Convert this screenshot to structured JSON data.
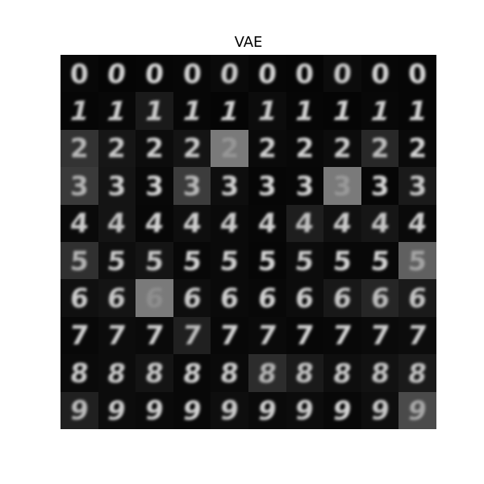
{
  "title": "VAE",
  "grid": {
    "rows": [
      {
        "digit": "0",
        "backgrounds": [
          "#080808",
          "#050505",
          "#060606",
          "#070707",
          "#0a0a0a",
          "#060606",
          "#050505",
          "#0c0c0c",
          "#070707",
          "#060606"
        ],
        "tones": [
          "#cfcfcf",
          "#d4d4d4",
          "#d8d8d8",
          "#d2d2d2",
          "#cccccc",
          "#d5d5d5",
          "#d0d0d0",
          "#cacaca",
          "#d3d3d3",
          "#d6d6d6"
        ],
        "slants": [
          0,
          -6,
          -4,
          -2,
          -5,
          -3,
          -1,
          -4,
          -2,
          2
        ]
      },
      {
        "digit": "1",
        "backgrounds": [
          "#060606",
          "#080808",
          "#1a1a1a",
          "#070707",
          "#050505",
          "#0c0c0c",
          "#060606",
          "#050505",
          "#080808",
          "#060606"
        ],
        "tones": [
          "#c8c8c8",
          "#cfcfcf",
          "#cccccc",
          "#d0d0d0",
          "#d4d4d4",
          "#cdcdcd",
          "#d2d2d2",
          "#d6d6d6",
          "#cfcfcf",
          "#d3d3d3"
        ],
        "slants": [
          -12,
          -14,
          -10,
          -12,
          -14,
          -12,
          -10,
          -12,
          -14,
          -10
        ]
      },
      {
        "digit": "2",
        "backgrounds": [
          "#333333",
          "#161616",
          "#0c0c0c",
          "#141414",
          "#7a7a7a",
          "#0a0a0a",
          "#080808",
          "#0c0c0c",
          "#282828",
          "#0a0a0a"
        ],
        "tones": [
          "#b8b8b8",
          "#c8c8c8",
          "#d0d0d0",
          "#cacaca",
          "#969696",
          "#cfcfcf",
          "#d2d2d2",
          "#cdcdcd",
          "#bdbdbd",
          "#d4d4d4"
        ],
        "slants": [
          0,
          -2,
          0,
          -2,
          0,
          -1,
          0,
          -2,
          0,
          0
        ]
      },
      {
        "digit": "3",
        "backgrounds": [
          "#3a3a3a",
          "#141414",
          "#080808",
          "#3c3c3c",
          "#0e0e0e",
          "#060606",
          "#070707",
          "#7a7a7a",
          "#060606",
          "#1a1a1a"
        ],
        "tones": [
          "#b4b4b4",
          "#cdcdcd",
          "#d6d6d6",
          "#b8b8b8",
          "#d0d0d0",
          "#d5d5d5",
          "#d3d3d3",
          "#999999",
          "#d6d6d6",
          "#c8c8c8"
        ],
        "slants": [
          0,
          0,
          0,
          0,
          0,
          0,
          0,
          0,
          0,
          0
        ]
      },
      {
        "digit": "4",
        "backgrounds": [
          "#0a0a0a",
          "#141414",
          "#070707",
          "#0e0e0e",
          "#0a0a0a",
          "#070707",
          "#1e1e1e",
          "#101010",
          "#161616",
          "#0a0a0a"
        ],
        "tones": [
          "#cdcdcd",
          "#c4c4c4",
          "#d2d2d2",
          "#cfcfcf",
          "#cccccc",
          "#d2d2d2",
          "#c0c0c0",
          "#cbcbcb",
          "#c6c6c6",
          "#d0d0d0"
        ],
        "slants": [
          -4,
          -4,
          -6,
          -4,
          -6,
          -4,
          -4,
          -6,
          -4,
          -6
        ]
      },
      {
        "digit": "5",
        "backgrounds": [
          "#303030",
          "#0e0e0e",
          "#141414",
          "#080808",
          "#0a0a0a",
          "#060606",
          "#0c0c0c",
          "#080808",
          "#080808",
          "#606060"
        ],
        "tones": [
          "#b4b4b4",
          "#cbcbcb",
          "#c8c8c8",
          "#d3d3d3",
          "#d0d0d0",
          "#d5d5d5",
          "#cccccc",
          "#d2d2d2",
          "#d3d3d3",
          "#a4a4a4"
        ],
        "slants": [
          -4,
          -6,
          -4,
          -6,
          -6,
          -4,
          -6,
          -4,
          -6,
          -4
        ]
      },
      {
        "digit": "6",
        "backgrounds": [
          "#101010",
          "#141414",
          "#7a7a7a",
          "#0e0e0e",
          "#0a0a0a",
          "#080808",
          "#0c0c0c",
          "#181818",
          "#262626",
          "#1a1a1a"
        ],
        "tones": [
          "#cdcdcd",
          "#c8c8c8",
          "#8e8e8e",
          "#cbcbcb",
          "#cfcfcf",
          "#d2d2d2",
          "#cdcdcd",
          "#c6c6c6",
          "#bdbdbd",
          "#c4c4c4"
        ],
        "slants": [
          -4,
          -6,
          -4,
          -6,
          -4,
          -6,
          -4,
          -6,
          -4,
          -6
        ]
      },
      {
        "digit": "7",
        "backgrounds": [
          "#080808",
          "#0c0c0c",
          "#0a0a0a",
          "#202020",
          "#080808",
          "#0a0a0a",
          "#070707",
          "#080808",
          "#0a0a0a",
          "#0c0c0c"
        ],
        "tones": [
          "#d0d0d0",
          "#cdcdcd",
          "#d2d2d2",
          "#bdbdbd",
          "#d3d3d3",
          "#cfcfcf",
          "#d4d4d4",
          "#d2d2d2",
          "#cecece",
          "#cccccc"
        ],
        "slants": [
          -4,
          -6,
          -4,
          -6,
          -4,
          -6,
          -4,
          -6,
          -4,
          -6
        ]
      },
      {
        "digit": "8",
        "backgrounds": [
          "#0a0a0a",
          "#0c0c0c",
          "#141414",
          "#080808",
          "#0a0a0a",
          "#2c2c2c",
          "#1a1a1a",
          "#0e0e0e",
          "#121212",
          "#1a1a1a"
        ],
        "tones": [
          "#cbcbcb",
          "#c8c8c8",
          "#c6c6c6",
          "#d0d0d0",
          "#cdcdcd",
          "#b4b4b4",
          "#c0c0c0",
          "#c8c8c8",
          "#c4c4c4",
          "#c2c2c2"
        ],
        "slants": [
          -6,
          -8,
          -6,
          -8,
          -6,
          -8,
          -6,
          -8,
          -6,
          -8
        ]
      },
      {
        "digit": "9",
        "backgrounds": [
          "#202020",
          "#0c0c0c",
          "#0a0a0a",
          "#080808",
          "#0e0e0e",
          "#0a0a0a",
          "#0c0c0c",
          "#080808",
          "#0e0e0e",
          "#4a4a4a"
        ],
        "tones": [
          "#bcbcbc",
          "#cbcbcb",
          "#cfcfcf",
          "#d2d2d2",
          "#cacaca",
          "#cecece",
          "#cbcbcb",
          "#d3d3d3",
          "#c8c8c8",
          "#a8a8a8"
        ],
        "slants": [
          -6,
          -8,
          -6,
          -8,
          -6,
          -8,
          -6,
          -8,
          -6,
          -8
        ]
      }
    ]
  }
}
